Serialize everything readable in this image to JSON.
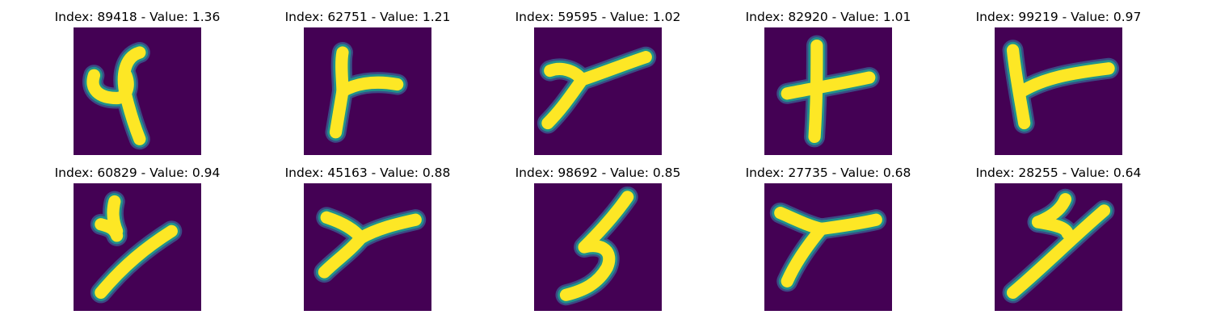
{
  "colors": {
    "background": "#440154",
    "stroke_core": "#fde725",
    "stroke_edge": "#21918c",
    "stroke_outer": "#3b528b"
  },
  "panels": [
    {
      "index": 89418,
      "value": "1.36",
      "title": "Index: 89418 - Value: 1.36",
      "glyph": "y-loop"
    },
    {
      "index": 62751,
      "value": "1.21",
      "title": "Index: 62751 - Value: 1.21",
      "glyph": "y-fork"
    },
    {
      "index": 59595,
      "value": "1.02",
      "title": "Index: 59595 - Value: 1.02",
      "glyph": "y-slant"
    },
    {
      "index": 82920,
      "value": "1.01",
      "title": "Index: 82920 - Value: 1.01",
      "glyph": "plus"
    },
    {
      "index": 99219,
      "value": "0.97",
      "title": "Index: 99219 - Value: 0.97",
      "glyph": "k"
    },
    {
      "index": 60829,
      "value": "0.94",
      "title": "Index: 60829 - Value: 0.94",
      "glyph": "y-thin"
    },
    {
      "index": 45163,
      "value": "0.88",
      "title": "Index: 45163 - Value: 0.88",
      "glyph": "y-bold"
    },
    {
      "index": 98692,
      "value": "0.85",
      "title": "Index: 98692 - Value: 0.85",
      "glyph": "s-curve"
    },
    {
      "index": 27735,
      "value": "0.68",
      "title": "Index: 27735 - Value: 0.68",
      "glyph": "y-wide"
    },
    {
      "index": 28255,
      "value": "0.64",
      "title": "Index: 28255 - Value: 0.64",
      "glyph": "z-zigzag"
    }
  ]
}
